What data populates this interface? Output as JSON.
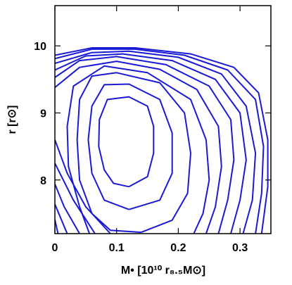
{
  "chart_data": {
    "type": "contour",
    "xlabel": "M• [10¹⁰ r₈.₅M⊙]",
    "ylabel": "r [r⊙]",
    "xlim": [
      0,
      0.35
    ],
    "ylim": [
      7.2,
      10.6
    ],
    "xticks": [
      0,
      0.1,
      0.2,
      0.3
    ],
    "yticks": [
      8,
      9,
      10
    ],
    "series": [
      {
        "color": "#1a1ad6",
        "x": [
          0.12,
          0.15,
          0.16,
          0.16,
          0.15,
          0.12,
          0.085,
          0.072,
          0.071,
          0.08,
          0.095,
          0.12
        ],
        "y": [
          7.9,
          8.05,
          8.4,
          8.8,
          9.1,
          9.24,
          9.2,
          8.9,
          8.5,
          8.15,
          7.95,
          7.9
        ]
      },
      {
        "color": "#1a1ad6",
        "x": [
          0.12,
          0.17,
          0.19,
          0.19,
          0.17,
          0.12,
          0.08,
          0.06,
          0.054,
          0.06,
          0.08,
          0.12
        ],
        "y": [
          7.56,
          7.7,
          8.1,
          8.7,
          9.2,
          9.43,
          9.42,
          9.1,
          8.6,
          8.1,
          7.7,
          7.56
        ]
      },
      {
        "color": "#1a1ad6",
        "x": [
          0.14,
          0.19,
          0.215,
          0.22,
          0.21,
          0.17,
          0.1,
          0.06,
          0.04,
          0.036,
          0.04,
          0.06,
          0.09,
          0.14
        ],
        "y": [
          7.22,
          7.4,
          7.8,
          8.4,
          9.0,
          9.45,
          9.6,
          9.55,
          9.2,
          8.6,
          8.0,
          7.5,
          7.25,
          7.22
        ]
      },
      {
        "color": "#1a1ad6",
        "x": [
          0.06,
          0.04,
          0.022,
          0.02,
          0.03,
          0.08,
          0.15,
          0.22,
          0.245,
          0.25,
          0.24,
          0.22
        ],
        "y": [
          7.1,
          7.6,
          8.2,
          8.8,
          9.4,
          9.7,
          9.6,
          9.2,
          8.6,
          8.0,
          7.5,
          7.1
        ]
      },
      {
        "color": "#1a1ad6",
        "x": [
          0,
          0.04,
          0.1,
          0.17,
          0.23,
          0.265,
          0.27,
          0.26,
          0.245,
          null,
          0.09,
          0.05,
          0.02,
          0
        ],
        "y": [
          9.38,
          9.68,
          9.77,
          9.65,
          9.35,
          8.8,
          8.2,
          7.6,
          7.2,
          null,
          7.2,
          7.6,
          8.1,
          8.6
        ]
      },
      {
        "color": "#1a1ad6",
        "x": [
          0,
          0.04,
          0.1,
          0.18,
          0.25,
          0.285,
          0.29,
          0.28,
          0.265,
          null,
          0.065,
          0.03,
          0
        ],
        "y": [
          9.53,
          9.78,
          9.84,
          9.72,
          9.4,
          8.9,
          8.3,
          7.7,
          7.2,
          null,
          7.2,
          7.7,
          8.25
        ]
      },
      {
        "color": "#1a1ad6",
        "x": [
          0,
          0.05,
          0.11,
          0.19,
          0.26,
          0.3,
          0.31,
          0.3,
          0.285,
          null,
          0.04,
          0.015,
          0
        ],
        "y": [
          9.64,
          9.85,
          9.88,
          9.78,
          9.5,
          9.0,
          8.3,
          7.7,
          7.2,
          null,
          7.2,
          7.6,
          7.94
        ]
      },
      {
        "color": "#1a1ad6",
        "x": [
          0,
          0.06,
          0.12,
          0.2,
          0.27,
          0.31,
          0.325,
          0.32,
          0.305,
          null,
          0.02,
          0
        ],
        "y": [
          9.74,
          9.9,
          9.92,
          9.83,
          9.58,
          9.1,
          8.4,
          7.7,
          7.2,
          null,
          7.2,
          7.64
        ]
      },
      {
        "color": "#1a1ad6",
        "x": [
          0,
          0.06,
          0.13,
          0.21,
          0.28,
          0.325,
          0.338,
          0.335,
          0.325,
          null,
          0.005,
          0
        ],
        "y": [
          9.81,
          9.95,
          9.95,
          9.86,
          9.64,
          9.2,
          8.5,
          7.8,
          7.2,
          null,
          7.2,
          7.41
        ]
      },
      {
        "color": "#1a1ad6",
        "x": [
          0,
          0.06,
          0.13,
          0.22,
          0.29,
          0.33,
          0.345,
          0.345,
          0.335
        ],
        "y": [
          9.86,
          9.97,
          9.97,
          9.88,
          9.68,
          9.3,
          8.6,
          7.9,
          7.2
        ]
      }
    ]
  }
}
